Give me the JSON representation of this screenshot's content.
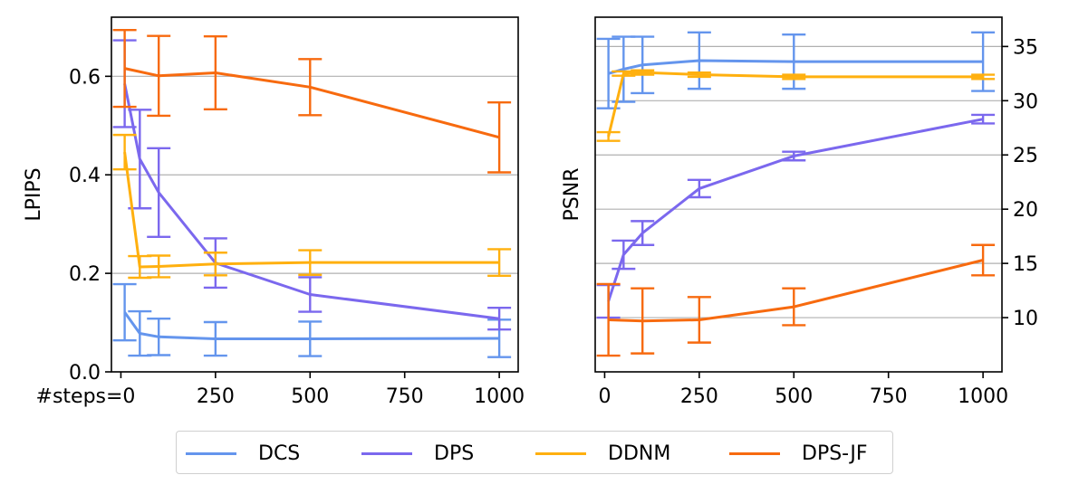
{
  "colors": {
    "DCS": "#6495ED",
    "DPS": "#7B68EE",
    "DDNM": "#FFB00F",
    "DPS-JF": "#F76A0F"
  },
  "chart_data": [
    {
      "type": "line",
      "title": "",
      "xlabel": "",
      "ylabel": "LPIPS",
      "xlim": [
        -25,
        1050
      ],
      "ylim": [
        0.0,
        0.72
      ],
      "xticks": [
        0,
        250,
        500,
        750,
        1000
      ],
      "xtick_labels": [
        "#steps=0",
        "250",
        "500",
        "750",
        "1000"
      ],
      "yticks": [
        0.0,
        0.2,
        0.4,
        0.6
      ],
      "ytick_labels": [
        "0.0",
        "0.2",
        "0.4",
        "0.6"
      ],
      "y_axis_side": "left",
      "grid": "horizontal",
      "x": [
        10,
        50,
        100,
        250,
        500,
        1000
      ],
      "series": [
        {
          "name": "DCS",
          "values": [
            0.121,
            0.078,
            0.071,
            0.067,
            0.067,
            0.068
          ],
          "err": [
            0.057,
            0.045,
            0.037,
            0.034,
            0.035,
            0.038
          ]
        },
        {
          "name": "DPS",
          "values": [
            0.585,
            0.432,
            0.364,
            0.221,
            0.157,
            0.108
          ],
          "err": [
            0.088,
            0.1,
            0.09,
            0.05,
            0.035,
            0.022
          ]
        },
        {
          "name": "DDNM",
          "values": [
            0.446,
            0.213,
            0.214,
            0.219,
            0.222,
            0.222
          ],
          "err": [
            0.035,
            0.022,
            0.022,
            0.023,
            0.025,
            0.027
          ]
        },
        {
          "name": "DPS-JF",
          "values": [
            0.616,
            0.601,
            0.607,
            0.578,
            0.476
          ],
          "x": [
            10,
            100,
            250,
            500,
            1000
          ],
          "err": [
            0.078,
            0.081,
            0.074,
            0.057,
            0.071
          ]
        }
      ]
    },
    {
      "type": "line",
      "title": "",
      "xlabel": "",
      "ylabel": "PSNR",
      "xlim": [
        -25,
        1050
      ],
      "ylim": [
        5.0,
        37.7
      ],
      "xticks": [
        0,
        250,
        500,
        750,
        1000
      ],
      "xtick_labels": [
        "0",
        "250",
        "500",
        "750",
        "1000"
      ],
      "yticks": [
        10,
        15,
        20,
        25,
        30,
        35
      ],
      "ytick_labels": [
        "10",
        "15",
        "20",
        "25",
        "30",
        "35"
      ],
      "y_axis_side": "right",
      "grid": "horizontal",
      "x": [
        10,
        50,
        100,
        250,
        500,
        1000
      ],
      "series": [
        {
          "name": "DCS",
          "values": [
            32.5,
            32.9,
            33.3,
            33.7,
            33.6,
            33.6
          ],
          "err": [
            3.2,
            3.0,
            2.6,
            2.6,
            2.5,
            2.7
          ]
        },
        {
          "name": "DPS",
          "values": [
            11.5,
            15.8,
            17.8,
            21.9,
            24.9,
            28.3
          ],
          "err": [
            1.5,
            1.3,
            1.1,
            0.8,
            0.4,
            0.4
          ]
        },
        {
          "name": "DDNM",
          "values": [
            26.7,
            32.5,
            32.6,
            32.4,
            32.2,
            32.2
          ],
          "err": [
            0.4,
            0.2,
            0.2,
            0.2,
            0.2,
            0.2
          ]
        },
        {
          "name": "DPS-JF",
          "values": [
            9.8,
            9.7,
            9.8,
            11.0,
            15.3
          ],
          "x": [
            10,
            100,
            250,
            500,
            1000
          ],
          "err": [
            3.3,
            3.0,
            2.1,
            1.7,
            1.4
          ]
        }
      ]
    }
  ],
  "legend": {
    "placement": "bottom-center",
    "entries": [
      "DCS",
      "DPS",
      "DDNM",
      "DPS-JF"
    ]
  }
}
